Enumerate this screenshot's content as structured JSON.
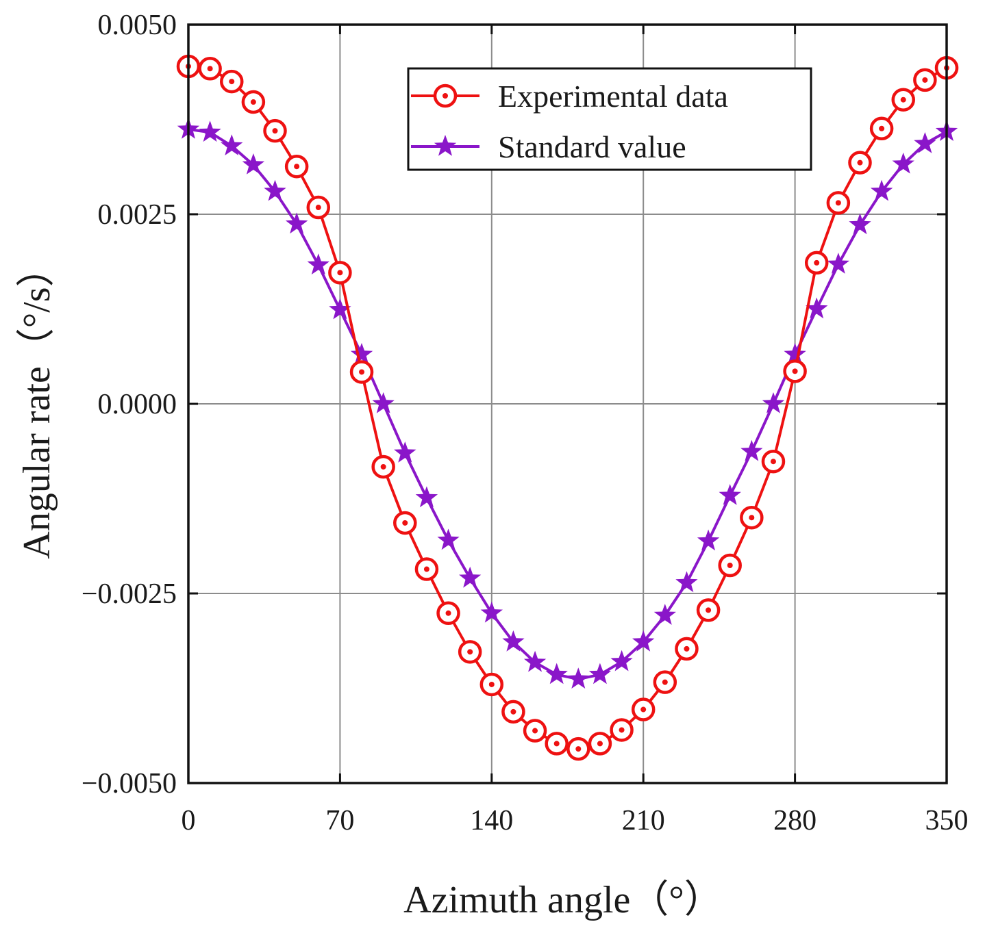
{
  "chart_data": {
    "type": "line",
    "xlabel": "Azimuth angle（°）",
    "ylabel": "Angular rate（°/s）",
    "xlim": [
      0,
      350
    ],
    "ylim": [
      -0.005,
      0.005
    ],
    "x_ticks": [
      0,
      70,
      140,
      210,
      280,
      350
    ],
    "y_ticks": [
      -0.005,
      -0.0025,
      0.0,
      0.0025,
      0.005
    ],
    "x_tick_labels": [
      "0",
      "70",
      "140",
      "210",
      "280",
      "350"
    ],
    "y_tick_labels": [
      "−0.0050",
      "−0.0025",
      "0.0000",
      "0.0025",
      "0.0050"
    ],
    "grid": true,
    "legend_position": "top-right",
    "x": [
      0,
      10,
      20,
      30,
      40,
      50,
      60,
      70,
      80,
      90,
      100,
      110,
      120,
      130,
      140,
      150,
      160,
      170,
      180,
      190,
      200,
      210,
      220,
      230,
      240,
      250,
      260,
      270,
      280,
      290,
      300,
      310,
      320,
      330,
      340,
      350
    ],
    "series": [
      {
        "name": "Experimental data",
        "color": "#ee1111",
        "marker": "circle-dot",
        "values": [
          0.00445,
          0.00442,
          0.00425,
          0.00398,
          0.0036,
          0.00313,
          0.00259,
          0.00173,
          0.00042,
          -0.00083,
          -0.00157,
          -0.00218,
          -0.00276,
          -0.00327,
          -0.0037,
          -0.00406,
          -0.00431,
          -0.00448,
          -0.00455,
          -0.00448,
          -0.0043,
          -0.00403,
          -0.00367,
          -0.00323,
          -0.00272,
          -0.00213,
          -0.0015,
          -0.00076,
          0.00043,
          0.00186,
          0.00265,
          0.00318,
          0.00363,
          0.00401,
          0.00427,
          0.00443
        ]
      },
      {
        "name": "Standard value",
        "color": "#8a16c9",
        "marker": "star",
        "values": [
          0.00362,
          0.00358,
          0.0034,
          0.00315,
          0.0028,
          0.00237,
          0.00183,
          0.00124,
          0.00065,
          0.0,
          -0.00065,
          -0.00124,
          -0.0018,
          -0.0023,
          -0.00276,
          -0.00314,
          -0.00341,
          -0.00357,
          -0.00363,
          -0.00357,
          -0.0034,
          -0.00314,
          -0.00279,
          -0.00236,
          -0.00181,
          -0.00121,
          -0.00063,
          0.0,
          0.00065,
          0.00125,
          0.00184,
          0.00236,
          0.0028,
          0.00316,
          0.00343,
          0.00359
        ]
      }
    ]
  }
}
